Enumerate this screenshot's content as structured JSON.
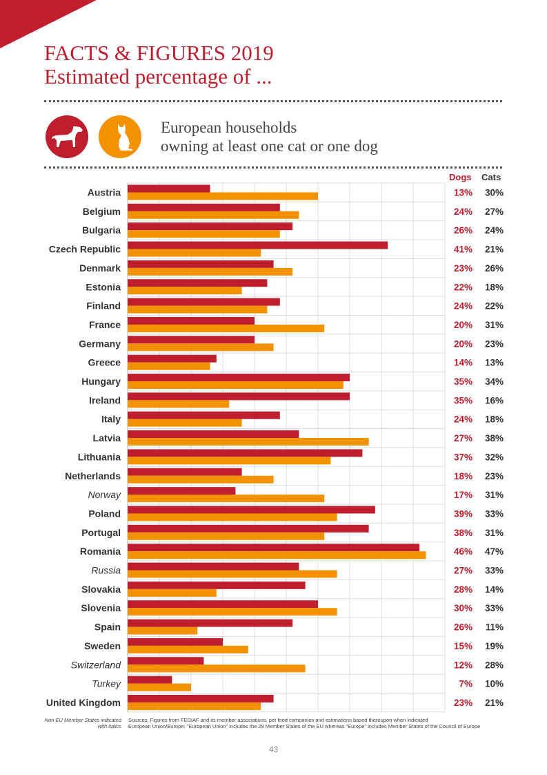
{
  "header": {
    "title_line1": "FACTS & FIGURES 2019",
    "title_line2": "Estimated percentage of ...",
    "subtitle_line1": "European households",
    "subtitle_line2": "owning at least one cat or one dog"
  },
  "icons": {
    "dog": "dog-icon",
    "cat": "cat-icon"
  },
  "colors": {
    "dogs": "#be1e2d",
    "cats": "#f39200",
    "accent": "#be1e2d"
  },
  "chart_data": {
    "type": "bar",
    "orientation": "horizontal",
    "categories": [
      "Austria",
      "Belgium",
      "Bulgaria",
      "Czech Republic",
      "Denmark",
      "Estonia",
      "Finland",
      "France",
      "Germany",
      "Greece",
      "Hungary",
      "Ireland",
      "Italy",
      "Latvia",
      "Lithuania",
      "Netherlands",
      "Norway",
      "Poland",
      "Portugal",
      "Romania",
      "Russia",
      "Slovakia",
      "Slovenia",
      "Spain",
      "Sweden",
      "Switzerland",
      "Turkey",
      "United Kingdom"
    ],
    "italic_categories": [
      "Norway",
      "Russia",
      "Switzerland",
      "Turkey"
    ],
    "series": [
      {
        "name": "Dogs",
        "values": [
          13,
          24,
          26,
          41,
          23,
          22,
          24,
          20,
          20,
          14,
          35,
          35,
          24,
          27,
          37,
          18,
          17,
          39,
          38,
          46,
          27,
          28,
          30,
          26,
          15,
          12,
          7,
          23
        ]
      },
      {
        "name": "Cats",
        "values": [
          30,
          27,
          24,
          21,
          26,
          18,
          22,
          31,
          23,
          13,
          34,
          16,
          18,
          38,
          32,
          23,
          31,
          33,
          31,
          47,
          33,
          14,
          33,
          11,
          19,
          28,
          10,
          21
        ]
      }
    ],
    "xlim": [
      0,
      50
    ],
    "grid": true,
    "legend": "top-right",
    "unit": "%"
  },
  "footer": {
    "note_line1": "Non EU Member States indicated",
    "note_line2": "with italics",
    "sources_line1": "Sources: Figures from FEDIAF and its member associations, pet food companies and estimations based thereupon when indicated",
    "sources_line2": "European Union/Europe: \"European Union\" includes the 28 Member States of the EU whereas \"Europe\" includes Member States of the Council of Europe",
    "page_number": "43"
  }
}
